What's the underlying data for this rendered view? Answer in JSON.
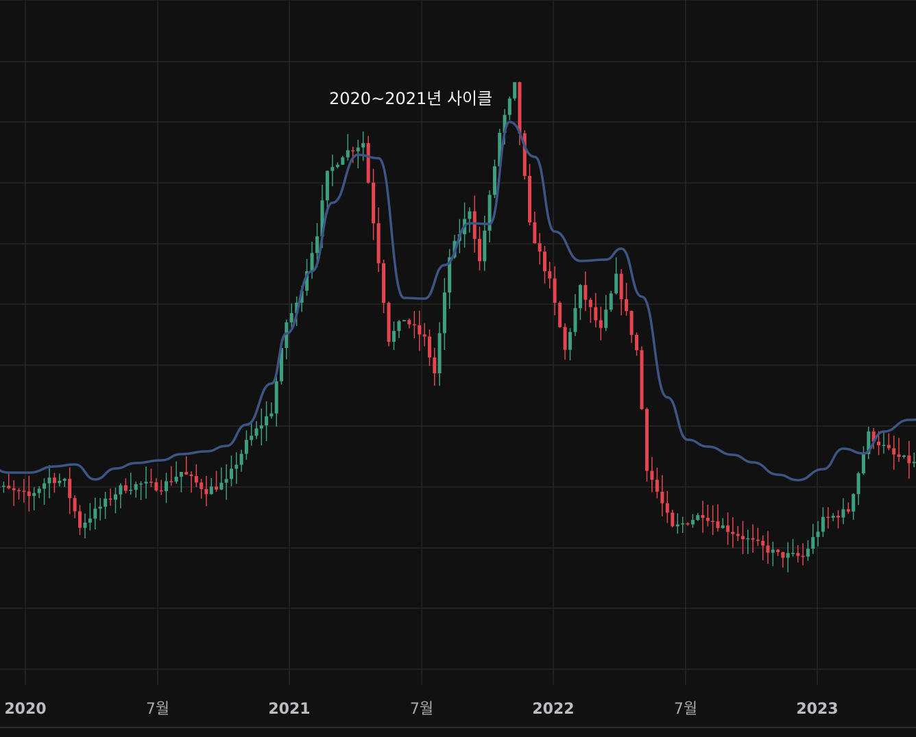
{
  "colors": {
    "background": "#111112",
    "grid": "#262628",
    "up": "#3e9f80",
    "down": "#e5454f",
    "moving_average": "#3c5585",
    "axis_text": "#a9a9ad"
  },
  "chart_data": {
    "type": "candlestick",
    "title": "",
    "annotation": "2020~2021년 사이클",
    "xlabel": "",
    "ylabel": "",
    "x_ticks": [
      {
        "label": "2020",
        "date": "2020-01",
        "year": true
      },
      {
        "label": "7월",
        "date": "2020-07",
        "year": false
      },
      {
        "label": "2021",
        "date": "2021-01",
        "year": true
      },
      {
        "label": "7월",
        "date": "2021-07",
        "year": false
      },
      {
        "label": "2022",
        "date": "2022-01",
        "year": true
      },
      {
        "label": "7월",
        "date": "2022-07",
        "year": false
      },
      {
        "label": "2023",
        "date": "2023-01",
        "year": true
      }
    ],
    "x_range": [
      "2019-11",
      "2023-10"
    ],
    "y_range": [
      0,
      1
    ],
    "y_axis_labels_visible": false,
    "grid": true,
    "legend": "none",
    "series": [
      {
        "kind": "candles",
        "interval": "weekly",
        "close_path": [
          [
            "2019-11-04",
            0.296
          ],
          [
            "2019-12-02",
            0.287
          ],
          [
            "2020-01-06",
            0.275
          ],
          [
            "2020-02-03",
            0.302
          ],
          [
            "2020-02-24",
            0.296
          ],
          [
            "2020-03-16",
            0.232
          ],
          [
            "2020-04-13",
            0.26
          ],
          [
            "2020-05-11",
            0.287
          ],
          [
            "2020-06-08",
            0.293
          ],
          [
            "2020-07-06",
            0.289
          ],
          [
            "2020-08-03",
            0.311
          ],
          [
            "2020-09-07",
            0.284
          ],
          [
            "2020-10-05",
            0.296
          ],
          [
            "2020-11-02",
            0.353
          ],
          [
            "2020-12-07",
            0.4
          ],
          [
            "2020-12-28",
            0.53
          ],
          [
            "2021-01-11",
            0.555
          ],
          [
            "2021-02-08",
            0.66
          ],
          [
            "2021-02-22",
            0.745
          ],
          [
            "2021-03-15",
            0.775
          ],
          [
            "2021-04-12",
            0.792
          ],
          [
            "2021-05-17",
            0.505
          ],
          [
            "2021-06-07",
            0.535
          ],
          [
            "2021-07-05",
            0.505
          ],
          [
            "2021-07-19",
            0.455
          ],
          [
            "2021-08-09",
            0.625
          ],
          [
            "2021-09-06",
            0.695
          ],
          [
            "2021-09-20",
            0.617
          ],
          [
            "2021-10-18",
            0.805
          ],
          [
            "2021-11-08",
            0.875
          ],
          [
            "2021-11-29",
            0.67
          ],
          [
            "2021-12-27",
            0.588
          ],
          [
            "2022-01-17",
            0.488
          ],
          [
            "2022-02-07",
            0.579
          ],
          [
            "2022-03-07",
            0.517
          ],
          [
            "2022-03-28",
            0.595
          ],
          [
            "2022-04-25",
            0.488
          ],
          [
            "2022-05-09",
            0.318
          ],
          [
            "2022-06-13",
            0.228
          ],
          [
            "2022-07-25",
            0.25
          ],
          [
            "2022-08-15",
            0.235
          ],
          [
            "2022-09-26",
            0.212
          ],
          [
            "2022-11-07",
            0.19
          ],
          [
            "2022-12-12",
            0.187
          ],
          [
            "2023-01-09",
            0.24
          ],
          [
            "2023-02-13",
            0.255
          ],
          [
            "2023-03-13",
            0.366
          ],
          [
            "2023-04-17",
            0.335
          ],
          [
            "2023-05-22",
            0.32
          ],
          [
            "2023-06-26",
            0.374
          ],
          [
            "2023-07-31",
            0.355
          ],
          [
            "2023-09-11",
            0.344
          ]
        ]
      },
      {
        "kind": "moving_average",
        "points": [
          [
            "2019-11-04",
            0.324
          ],
          [
            "2019-12-09",
            0.31
          ],
          [
            "2020-01-06",
            0.31
          ],
          [
            "2020-02-10",
            0.319
          ],
          [
            "2020-03-09",
            0.322
          ],
          [
            "2020-04-06",
            0.3
          ],
          [
            "2020-05-04",
            0.316
          ],
          [
            "2020-06-01",
            0.324
          ],
          [
            "2020-07-06",
            0.328
          ],
          [
            "2020-08-03",
            0.337
          ],
          [
            "2020-09-07",
            0.341
          ],
          [
            "2020-10-05",
            0.349
          ],
          [
            "2020-11-02",
            0.38
          ],
          [
            "2020-12-07",
            0.44
          ],
          [
            "2020-12-28",
            0.513
          ],
          [
            "2021-02-01",
            0.604
          ],
          [
            "2021-03-01",
            0.704
          ],
          [
            "2021-04-05",
            0.774
          ],
          [
            "2021-05-03",
            0.769
          ],
          [
            "2021-06-07",
            0.565
          ],
          [
            "2021-07-05",
            0.564
          ],
          [
            "2021-08-02",
            0.613
          ],
          [
            "2021-09-06",
            0.674
          ],
          [
            "2021-10-04",
            0.673
          ],
          [
            "2021-11-01",
            0.822
          ],
          [
            "2021-12-06",
            0.771
          ],
          [
            "2022-01-03",
            0.662
          ],
          [
            "2022-02-07",
            0.619
          ],
          [
            "2022-03-14",
            0.621
          ],
          [
            "2022-04-04",
            0.637
          ],
          [
            "2022-05-02",
            0.567
          ],
          [
            "2022-06-06",
            0.42
          ],
          [
            "2022-07-04",
            0.358
          ],
          [
            "2022-08-01",
            0.348
          ],
          [
            "2022-09-05",
            0.336
          ],
          [
            "2022-10-03",
            0.325
          ],
          [
            "2022-11-07",
            0.307
          ],
          [
            "2022-12-05",
            0.299
          ],
          [
            "2023-01-09",
            0.315
          ],
          [
            "2023-02-06",
            0.345
          ],
          [
            "2023-03-06",
            0.338
          ],
          [
            "2023-04-03",
            0.37
          ],
          [
            "2023-05-08",
            0.387
          ],
          [
            "2023-06-05",
            0.388
          ],
          [
            "2023-07-03",
            0.417
          ],
          [
            "2023-08-07",
            0.401
          ],
          [
            "2023-09-11",
            0.395
          ]
        ]
      }
    ]
  }
}
